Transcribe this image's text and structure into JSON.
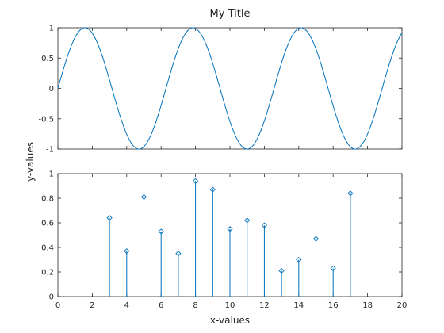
{
  "chart_data": [
    {
      "type": "line",
      "title": "My Title",
      "xlabel": "",
      "ylabel": "",
      "xlim": [
        0,
        20
      ],
      "ylim": [
        -1,
        1
      ],
      "yticks": [
        -1,
        -0.5,
        0,
        0.5,
        1
      ],
      "ytick_labels": [
        "-1",
        "-0.5",
        "0",
        "0.5",
        "1"
      ],
      "xticks_shown": false,
      "grid": false,
      "box": true,
      "color": "#0072bd",
      "series": [
        {
          "function": "sin(x)",
          "x_start": 0,
          "x_end": 20
        }
      ]
    },
    {
      "type": "stem",
      "title": "",
      "xlabel": "x-values",
      "ylabel": "",
      "xlim": [
        0,
        20
      ],
      "ylim": [
        0,
        1
      ],
      "xticks": [
        0,
        2,
        4,
        6,
        8,
        10,
        12,
        14,
        16,
        18,
        20
      ],
      "xtick_labels": [
        "0",
        "2",
        "4",
        "6",
        "8",
        "10",
        "12",
        "14",
        "16",
        "18",
        "20"
      ],
      "yticks": [
        0,
        0.2,
        0.4,
        0.6,
        0.8,
        1
      ],
      "ytick_labels": [
        "0",
        "0.2",
        "0.4",
        "0.6",
        "0.8",
        "1"
      ],
      "grid": false,
      "box": true,
      "color": "#0072bd",
      "marker": "diamond",
      "series": [
        {
          "x": [
            3,
            4,
            5,
            6,
            7,
            8,
            9,
            10,
            11,
            12,
            13,
            14,
            15,
            16,
            17
          ],
          "values": [
            0.64,
            0.37,
            0.81,
            0.53,
            0.35,
            0.94,
            0.87,
            0.55,
            0.62,
            0.58,
            0.21,
            0.3,
            0.47,
            0.23,
            0.84
          ]
        }
      ]
    }
  ],
  "shared_ylabel": "y-values"
}
